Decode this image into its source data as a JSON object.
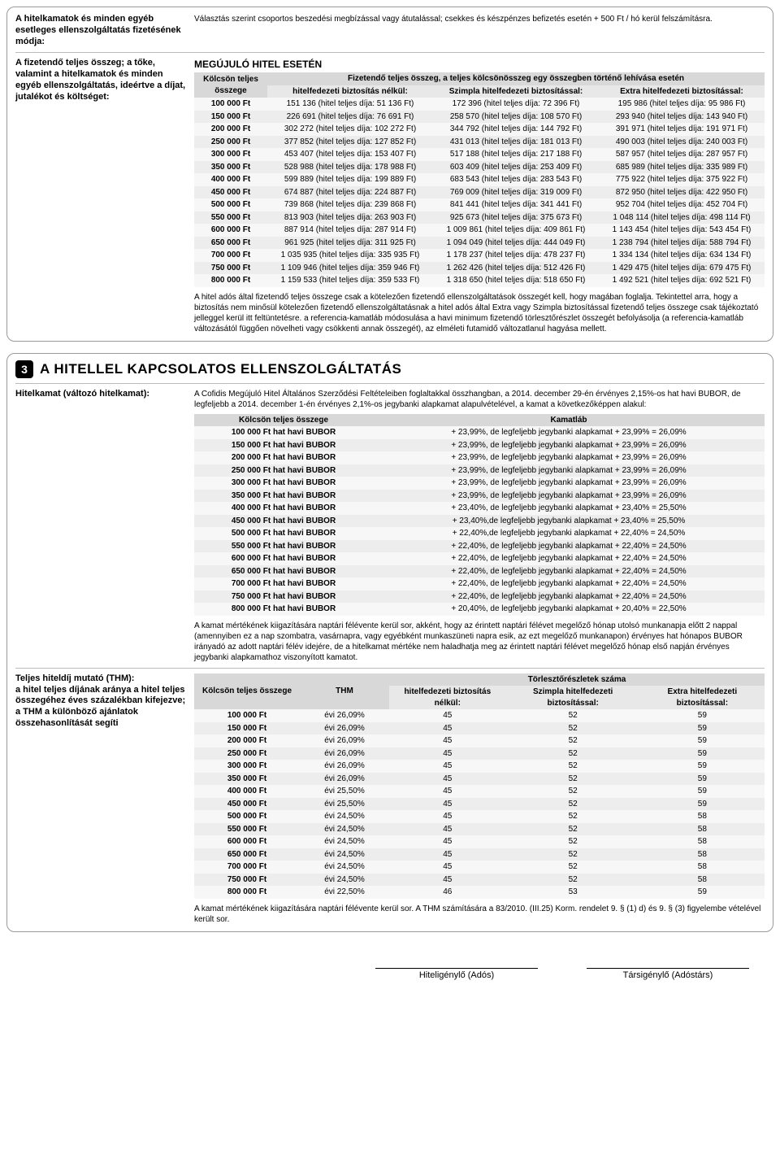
{
  "panel1": {
    "row1_label": "A hitelkamatok és minden egyéb esetleges ellenszolgáltatás fizetésének módja:",
    "row1_text": "Választás szerint csoportos beszedési megbízással vagy átutalással; csekkes és készpénzes befizetés esetén + 500 Ft / hó kerül felszámításra.",
    "row2_label": "A fizetendő teljes összeg; a tőke, valamint a hitelkamatok és minden egyéb ellenszolgáltatás, ideértve a díjat, jutalékot és költséget:",
    "row2_heading": "MEGÚJULÓ HITEL ESETÉN",
    "t1_h1": "Kölcsön teljes összege",
    "t1_h2": "Fizetendő teljes összeg, a teljes kölcsönösszeg egy összegben történő lehívása esetén",
    "t1_sub1": "hitelfedezeti biztosítás nélkül:",
    "t1_sub2": "Szimpla hitelfedezeti biztosítással:",
    "t1_sub3": "Extra hitelfedezeti biztosítással:",
    "t1_rows": [
      [
        "100 000 Ft",
        "151 136 (hitel teljes díja: 51 136 Ft)",
        "172 396 (hitel teljes díja: 72 396 Ft)",
        "195 986 (hitel teljes díja: 95 986 Ft)"
      ],
      [
        "150 000 Ft",
        "226 691 (hitel teljes díja: 76 691 Ft)",
        "258 570 (hitel teljes díja: 108 570 Ft)",
        "293 940 (hitel teljes díja: 143 940 Ft)"
      ],
      [
        "200 000 Ft",
        "302 272 (hitel teljes díja: 102 272 Ft)",
        "344 792 (hitel teljes díja: 144 792 Ft)",
        "391 971 (hitel teljes díja: 191 971 Ft)"
      ],
      [
        "250 000 Ft",
        "377 852 (hitel teljes díja: 127 852 Ft)",
        "431 013 (hitel teljes díja: 181 013 Ft)",
        "490 003 (hitel teljes díja: 240 003 Ft)"
      ],
      [
        "300 000 Ft",
        "453 407 (hitel teljes díja: 153 407 Ft)",
        "517 188 (hitel teljes díja: 217 188 Ft)",
        "587 957 (hitel teljes díja: 287 957 Ft)"
      ],
      [
        "350 000 Ft",
        "528 988 (hitel teljes díja: 178 988 Ft)",
        "603 409 (hitel teljes díja: 253 409 Ft)",
        "685 989 (hitel teljes díja: 335 989 Ft)"
      ],
      [
        "400 000 Ft",
        "599 889 (hitel teljes díja: 199 889 Ft)",
        "683 543 (hitel teljes díja: 283 543 Ft)",
        "775 922 (hitel teljes díja: 375 922 Ft)"
      ],
      [
        "450 000 Ft",
        "674 887 (hitel teljes díja: 224 887 Ft)",
        "769 009 (hitel teljes díja: 319 009 Ft)",
        "872 950 (hitel teljes díja: 422 950 Ft)"
      ],
      [
        "500 000 Ft",
        "739 868 (hitel teljes díja: 239 868 Ft)",
        "841 441 (hitel teljes díja: 341 441 Ft)",
        "952 704 (hitel teljes díja: 452 704 Ft)"
      ],
      [
        "550 000 Ft",
        "813 903 (hitel teljes díja: 263 903 Ft)",
        "925 673 (hitel teljes díja: 375 673 Ft)",
        "1 048 114 (hitel teljes díja: 498 114 Ft)"
      ],
      [
        "600 000 Ft",
        "887 914 (hitel teljes díja: 287 914 Ft)",
        "1 009 861 (hitel teljes díja: 409 861 Ft)",
        "1 143 454 (hitel teljes díja: 543 454 Ft)"
      ],
      [
        "650 000 Ft",
        "961 925 (hitel teljes díja: 311 925 Ft)",
        "1 094 049 (hitel teljes díja: 444 049 Ft)",
        "1 238 794 (hitel teljes díja: 588 794 Ft)"
      ],
      [
        "700 000 Ft",
        "1 035 935 (hitel teljes díja: 335 935 Ft)",
        "1 178 237 (hitel teljes díja: 478 237 Ft)",
        "1 334 134 (hitel teljes díja: 634 134 Ft)"
      ],
      [
        "750 000 Ft",
        "1 109 946 (hitel teljes díja: 359 946 Ft)",
        "1 262 426 (hitel teljes díja: 512 426 Ft)",
        "1 429 475 (hitel teljes díja: 679 475 Ft)"
      ],
      [
        "800 000 Ft",
        "1 159 533 (hitel teljes díja: 359 533 Ft)",
        "1 318 650 (hitel teljes díja: 518 650 Ft)",
        "1 492 521 (hitel teljes díja: 692 521 Ft)"
      ]
    ],
    "t1_note": "A hitel adós által fizetendő teljes összege csak a kötelezően fizetendő ellenszolgáltatások összegét kell, hogy magában foglalja. Tekintettel arra, hogy a biztosítás nem minősül kötelezően fizetendő ellenszolgáltatásnak a hitel adós által Extra vagy Szimpla biztosítással fizetendő teljes összege csak tájékoztató jelleggel kerül itt feltüntetésre. a referencia-kamatláb módosulása a havi minimum fizetendő törlesztőrészlet összegét befolyásolja (a referencia-kamatláb változásától függően növelheti vagy csökkenti annak összegét), az elméleti futamidő változatlanul hagyása mellett."
  },
  "panel2": {
    "badge": "3",
    "title": "A HITELLEL KAPCSOLATOS ELLENSZOLGÁLTATÁS",
    "r1_label": "Hitelkamat (változó hitelkamat):",
    "r1_intro": "A Cofidis Megújuló Hitel Általános Szerződési Feltételeiben foglaltakkal összhangban, a 2014. december 29-én érvényes 2,15%-os hat havi BUBOR, de legfeljebb a 2014. december 1-én érvényes 2,1%-os jegybanki alapkamat alapulvételével, a kamat a következőképpen alakul:",
    "t2_h1": "Kölcsön teljes összege",
    "t2_h2": "Kamatláb",
    "t2_rows": [
      [
        "100 000 Ft hat havi BUBOR",
        "+ 23,99%, de legfeljebb jegybanki alapkamat + 23,99% = 26,09%"
      ],
      [
        "150 000 Ft hat havi BUBOR",
        "+ 23,99%, de legfeljebb jegybanki alapkamat + 23,99% = 26,09%"
      ],
      [
        "200 000 Ft hat havi BUBOR",
        "+ 23,99%, de legfeljebb jegybanki alapkamat + 23,99% = 26,09%"
      ],
      [
        "250 000 Ft hat havi BUBOR",
        "+ 23,99%, de legfeljebb jegybanki alapkamat + 23,99% = 26,09%"
      ],
      [
        "300 000 Ft hat havi BUBOR",
        "+ 23,99%, de legfeljebb jegybanki alapkamat + 23,99% = 26,09%"
      ],
      [
        "350 000 Ft hat havi BUBOR",
        "+ 23,99%, de legfeljebb jegybanki alapkamat + 23,99% = 26,09%"
      ],
      [
        "400 000 Ft hat havi BUBOR",
        "+ 23,40%, de legfeljebb jegybanki alapkamat + 23,40% = 25,50%"
      ],
      [
        "450 000 Ft hat havi BUBOR",
        "+ 23,40%,de legfeljebb jegybanki alapkamat + 23,40% = 25,50%"
      ],
      [
        "500 000 Ft hat havi BUBOR",
        "+ 22,40%,de legfeljebb jegybanki alapkamat + 22,40% = 24,50%"
      ],
      [
        "550 000 Ft hat havi BUBOR",
        "+ 22,40%, de legfeljebb jegybanki alapkamat + 22,40% = 24,50%"
      ],
      [
        "600 000 Ft hat havi BUBOR",
        "+ 22,40%, de legfeljebb jegybanki alapkamat + 22,40% = 24,50%"
      ],
      [
        "650 000 Ft hat havi BUBOR",
        "+ 22,40%, de legfeljebb jegybanki alapkamat + 22,40% = 24,50%"
      ],
      [
        "700 000 Ft hat havi BUBOR",
        "+ 22,40%, de legfeljebb jegybanki alapkamat + 22,40% = 24,50%"
      ],
      [
        "750 000 Ft hat havi BUBOR",
        "+ 22,40%, de legfeljebb jegybanki alapkamat + 22,40% = 24,50%"
      ],
      [
        "800 000 Ft hat havi BUBOR",
        "+ 20,40%, de legfeljebb jegybanki alapkamat + 20,40% = 22,50%"
      ]
    ],
    "t2_note": "A kamat mértékének kiigazítására naptári félévente kerül sor, akként, hogy az érintett naptári félévet megelőző hónap utolsó munkanapja előtt 2 nappal (amennyiben ez a nap szombatra, vasárnapra, vagy egyébként munkaszüneti napra esik, az ezt megelőző munkanapon) érvényes hat hónapos BUBOR irányadó az adott naptári félév idejére, de a hitelkamat mértéke nem haladhatja meg az érintett naptári félévet megelőző hónap első napján érvényes jegybanki alapkamathoz viszonyított kamatot.",
    "r2_label": "Teljes hiteldíj mutató (THM):\na hitel teljes díjának aránya a hitel teljes összegéhez éves százalékban kifejezve; a THM a különböző ajánlatok összehasonlítását segíti",
    "t3_h1": "Kölcsön teljes összege",
    "t3_h2": "THM",
    "t3_h3": "Törlesztőrészletek száma",
    "t3_sub1": "hitelfedezeti biztosítás nélkül:",
    "t3_sub2": "Szimpla hitelfedezeti biztosítással:",
    "t3_sub3": "Extra hitelfedezeti biztosítással:",
    "t3_rows": [
      [
        "100 000 Ft",
        "évi 26,09%",
        "45",
        "52",
        "59"
      ],
      [
        "150 000 Ft",
        "évi 26,09%",
        "45",
        "52",
        "59"
      ],
      [
        "200 000 Ft",
        "évi 26,09%",
        "45",
        "52",
        "59"
      ],
      [
        "250 000 Ft",
        "évi 26,09%",
        "45",
        "52",
        "59"
      ],
      [
        "300 000 Ft",
        "évi 26,09%",
        "45",
        "52",
        "59"
      ],
      [
        "350 000 Ft",
        "évi 26,09%",
        "45",
        "52",
        "59"
      ],
      [
        "400 000 Ft",
        "évi 25,50%",
        "45",
        "52",
        "59"
      ],
      [
        "450 000 Ft",
        "évi 25,50%",
        "45",
        "52",
        "59"
      ],
      [
        "500 000 Ft",
        "évi 24,50%",
        "45",
        "52",
        "58"
      ],
      [
        "550 000 Ft",
        "évi 24,50%",
        "45",
        "52",
        "58"
      ],
      [
        "600 000 Ft",
        "évi 24,50%",
        "45",
        "52",
        "58"
      ],
      [
        "650 000 Ft",
        "évi 24,50%",
        "45",
        "52",
        "58"
      ],
      [
        "700 000 Ft",
        "évi 24,50%",
        "45",
        "52",
        "58"
      ],
      [
        "750 000 Ft",
        "évi 24,50%",
        "45",
        "52",
        "58"
      ],
      [
        "800 000 Ft",
        "évi 22,50%",
        "46",
        "53",
        "59"
      ]
    ],
    "t3_note": "A kamat mértékének kiigazítására naptári félévente kerül sor. A THM számítására a 83/2010. (III.25) Korm. rendelet 9. § (1) d) és 9. § (3) figyelembe vételével került sor."
  },
  "sig1": "Hiteligénylő (Adós)",
  "sig2": "Társigénylő (Adóstárs)"
}
